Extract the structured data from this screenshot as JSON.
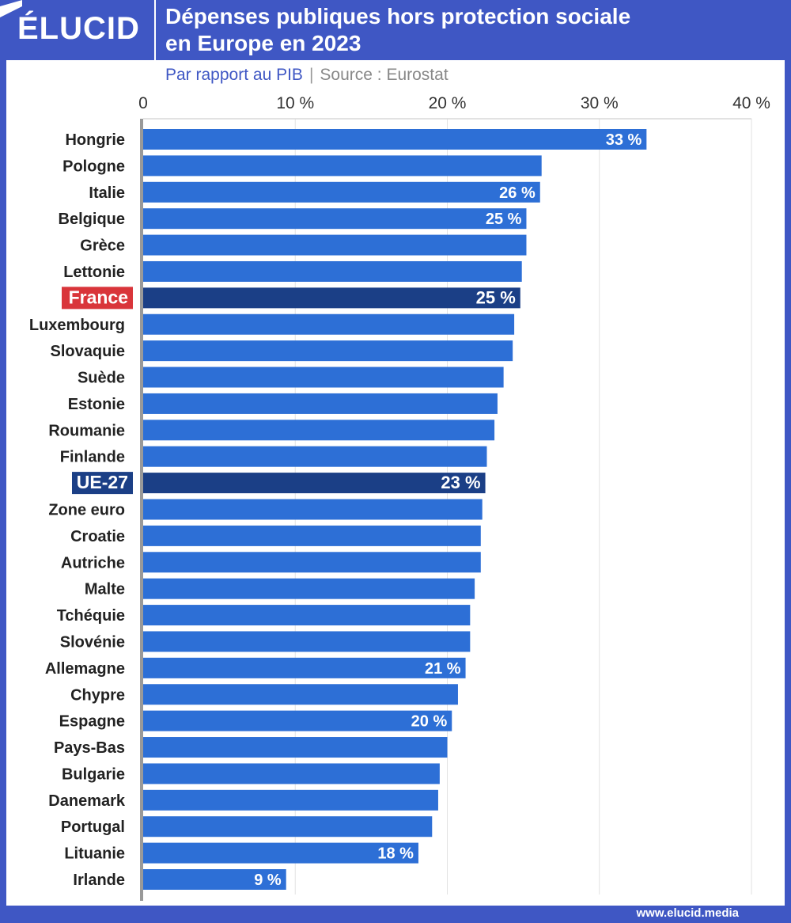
{
  "header": {
    "logo": "ÉLUCID",
    "title_line1": "Dépenses publiques hors protection sociale",
    "title_line2": "en Europe en 2023"
  },
  "subtitle": {
    "measure": "Par rapport au PIB",
    "separator": "|",
    "source": "Source : Eurostat"
  },
  "footer": {
    "url": "www.elucid.media"
  },
  "colors": {
    "frame": "#3f57c4",
    "bar": "#2d6fd6",
    "highlight_bar": "#1b3f86",
    "france_label": "#d9353a",
    "eu_label": "#1b3f86"
  },
  "chart_data": {
    "type": "bar",
    "orientation": "horizontal",
    "xlim": [
      0,
      40
    ],
    "x_ticks": [
      0,
      10,
      20,
      30,
      40
    ],
    "x_tick_labels": [
      "0",
      "10 %",
      "20 %",
      "30 %",
      "40 %"
    ],
    "grid": true,
    "categories": [
      "Hongrie",
      "Pologne",
      "Italie",
      "Belgique",
      "Grèce",
      "Lettonie",
      "France",
      "Luxembourg",
      "Slovaquie",
      "Suède",
      "Estonie",
      "Roumanie",
      "Finlande",
      "UE-27",
      "Zone euro",
      "Croatie",
      "Autriche",
      "Malte",
      "Tchéquie",
      "Slovénie",
      "Allemagne",
      "Chypre",
      "Espagne",
      "Pays-Bas",
      "Bulgarie",
      "Danemark",
      "Portugal",
      "Lituanie",
      "Irlande"
    ],
    "values": [
      33.1,
      26.2,
      26.1,
      25.2,
      25.2,
      24.9,
      24.8,
      24.4,
      24.3,
      23.7,
      23.3,
      23.1,
      22.6,
      22.5,
      22.3,
      22.2,
      22.2,
      21.8,
      21.5,
      21.5,
      21.2,
      20.7,
      20.3,
      20.0,
      19.5,
      19.4,
      19.0,
      18.1,
      9.4
    ],
    "data_labels": [
      "33 %",
      "",
      "26 %",
      "25 %",
      "",
      "",
      "25 %",
      "",
      "",
      "",
      "",
      "",
      "",
      "23 %",
      "",
      "",
      "",
      "",
      "",
      "",
      "21 %",
      "",
      "20 %",
      "",
      "",
      "",
      "",
      "18 %",
      "9 %"
    ],
    "highlighted": [
      "France",
      "UE-27"
    ]
  }
}
